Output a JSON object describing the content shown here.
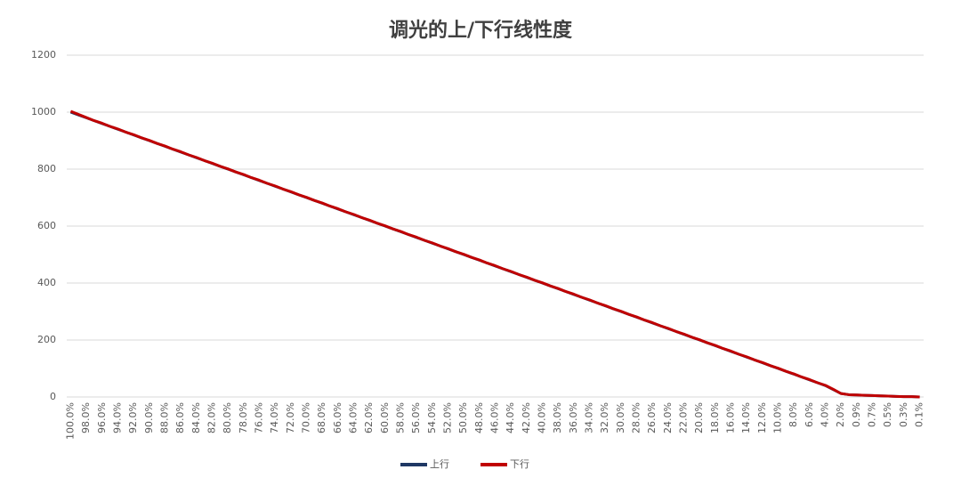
{
  "chart_data": {
    "type": "line",
    "title": "调光的上/下行线性度",
    "categories": [
      "100.0%",
      null,
      "98.0%",
      null,
      "96.0%",
      null,
      "94.0%",
      null,
      "92.0%",
      null,
      "90.0%",
      null,
      "88.0%",
      null,
      "86.0%",
      null,
      "84.0%",
      null,
      "82.0%",
      null,
      "80.0%",
      null,
      "78.0%",
      null,
      "76.0%",
      null,
      "74.0%",
      null,
      "72.0%",
      null,
      "70.0%",
      null,
      "68.0%",
      null,
      "66.0%",
      null,
      "64.0%",
      null,
      "62.0%",
      null,
      "60.0%",
      null,
      "58.0%",
      null,
      "56.0%",
      null,
      "54.0%",
      null,
      "52.0%",
      null,
      "50.0%",
      null,
      "48.0%",
      null,
      "46.0%",
      null,
      "44.0%",
      null,
      "42.0%",
      null,
      "40.0%",
      null,
      "38.0%",
      null,
      "36.0%",
      null,
      "34.0%",
      null,
      "32.0%",
      null,
      "30.0%",
      null,
      "28.0%",
      null,
      "26.0%",
      null,
      "24.0%",
      null,
      "22.0%",
      null,
      "20.0%",
      null,
      "18.0%",
      null,
      "16.0%",
      null,
      "14.0%",
      null,
      "12.0%",
      null,
      "10.0%",
      null,
      "8.0%",
      null,
      "6.0%",
      null,
      "4.0%",
      null,
      "2.0%",
      null,
      "0.9%",
      null,
      "0.7%",
      null,
      "0.5%",
      null,
      "0.3%",
      null,
      "0.1%"
    ],
    "series": [
      {
        "name": "上行",
        "color": "#1f3864",
        "values": [
          1000,
          990,
          980,
          970,
          960,
          950,
          940,
          930,
          920,
          910,
          900,
          890,
          880,
          870,
          860,
          850,
          840,
          830,
          820,
          810,
          800,
          790,
          780,
          770,
          760,
          750,
          740,
          730,
          720,
          710,
          700,
          690,
          680,
          670,
          660,
          650,
          640,
          630,
          620,
          610,
          600,
          590,
          580,
          570,
          560,
          550,
          540,
          530,
          520,
          510,
          500,
          490,
          480,
          470,
          460,
          450,
          440,
          430,
          420,
          410,
          400,
          390,
          380,
          370,
          360,
          350,
          340,
          330,
          320,
          310,
          300,
          290,
          280,
          270,
          260,
          250,
          240,
          230,
          220,
          210,
          200,
          190,
          180,
          170,
          160,
          150,
          140,
          130,
          120,
          110,
          100,
          90,
          80,
          70,
          60,
          50,
          40,
          26,
          12,
          8,
          7,
          6,
          5,
          4,
          3,
          2,
          1,
          1,
          0
        ]
      },
      {
        "name": "下行",
        "color": "#c00000",
        "values": [
          1003,
          992,
          981,
          970,
          961,
          950,
          941,
          930,
          921,
          910,
          901,
          890,
          881,
          870,
          861,
          850,
          841,
          830,
          821,
          810,
          801,
          790,
          781,
          770,
          761,
          750,
          741,
          730,
          721,
          710,
          701,
          690,
          681,
          670,
          661,
          650,
          641,
          630,
          621,
          610,
          601,
          590,
          581,
          570,
          561,
          550,
          541,
          530,
          521,
          510,
          501,
          490,
          481,
          470,
          461,
          450,
          441,
          430,
          421,
          410,
          401,
          390,
          381,
          370,
          361,
          350,
          341,
          330,
          321,
          310,
          301,
          290,
          281,
          270,
          261,
          250,
          241,
          230,
          221,
          210,
          201,
          190,
          181,
          170,
          161,
          150,
          141,
          130,
          121,
          110,
          101,
          90,
          81,
          70,
          61,
          50,
          41,
          27,
          12,
          8,
          7,
          6,
          5,
          4,
          3,
          2,
          1,
          1,
          0
        ]
      }
    ],
    "ylim": [
      0,
      1200
    ],
    "yticks": [
      0,
      200,
      400,
      600,
      800,
      1000,
      1200
    ],
    "grid": true,
    "legend": "bottom"
  }
}
